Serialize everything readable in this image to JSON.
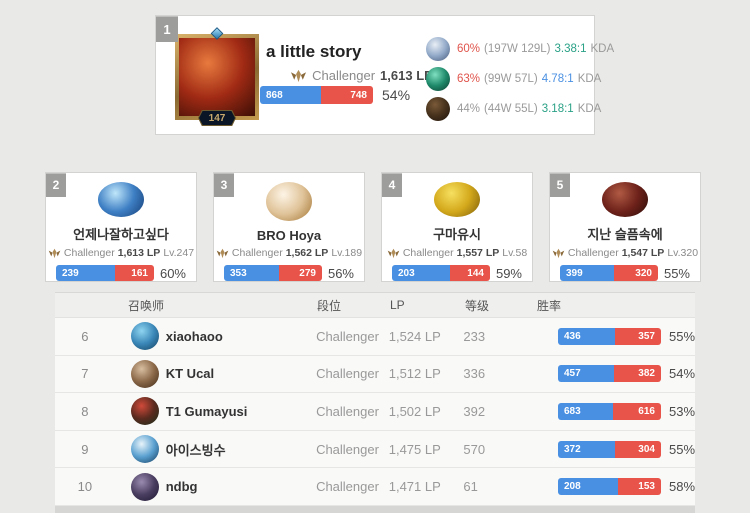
{
  "colors": {
    "win_blue": "#4a90e2",
    "loss_red": "#e85449",
    "crest_gold": "#b08d57"
  },
  "top_player": {
    "rank": "1",
    "level": "147",
    "name": "a little story",
    "tier": "Challenger",
    "lp": "1,613 LP",
    "wins": "868",
    "losses": "748",
    "win_pct": "54%",
    "win_ratio": 54,
    "avatar_colors": [
      "#e87a3e",
      "#a02a14",
      "#3c0e06"
    ],
    "champions": [
      {
        "icon": "champion-icon",
        "win_pct": "60%",
        "pct_color": "#e0544c",
        "record": "(197W 129L)",
        "kda": "3.38:1",
        "kda_color": "#2aa186",
        "kda_label": "KDA",
        "icon_colors": [
          "#e8eef5",
          "#93aac9",
          "#46597a"
        ]
      },
      {
        "icon": "champion-icon",
        "win_pct": "63%",
        "pct_color": "#e0544c",
        "record": "(99W 57L)",
        "kda": "4.78:1",
        "kda_color": "#4a90e2",
        "kda_label": "KDA",
        "icon_colors": [
          "#7fe0c0",
          "#1f8a6a",
          "#0b3a2e"
        ]
      },
      {
        "icon": "champion-icon",
        "win_pct": "44%",
        "pct_color": "#9a9a9a",
        "record": "(44W 55L)",
        "kda": "3.18:1",
        "kda_color": "#2aa186",
        "kda_label": "KDA",
        "icon_colors": [
          "#7a5a38",
          "#46311c",
          "#1d130a"
        ]
      }
    ]
  },
  "rank_cards": [
    {
      "rank": "2",
      "name": "언제나잘하고싶다",
      "tier": "Challenger",
      "lp": "1,613 LP",
      "level": "Lv.247",
      "wins": "239",
      "losses": "161",
      "win_pct": "60%",
      "win_ratio": 60,
      "avatar_colors": [
        "#bfe6fa",
        "#3e7fc4",
        "#143d74"
      ]
    },
    {
      "rank": "3",
      "name": "BRO Hoya",
      "tier": "Challenger",
      "lp": "1,562 LP",
      "level": "Lv.189",
      "wins": "353",
      "losses": "279",
      "win_pct": "56%",
      "win_ratio": 56,
      "avatar_colors": [
        "#fdf4e6",
        "#e0c49a",
        "#a1722f"
      ]
    },
    {
      "rank": "4",
      "name": "구마유시",
      "tier": "Challenger",
      "lp": "1,557 LP",
      "level": "Lv.58",
      "wins": "203",
      "losses": "144",
      "win_pct": "59%",
      "win_ratio": 59,
      "avatar_colors": [
        "#f6e060",
        "#d4a91c",
        "#7a5c0a"
      ]
    },
    {
      "rank": "5",
      "name": "지난 슬픔속에",
      "tier": "Challenger",
      "lp": "1,547 LP",
      "level": "Lv.320",
      "wins": "399",
      "losses": "320",
      "win_pct": "55%",
      "win_ratio": 55,
      "avatar_colors": [
        "#b05a44",
        "#6e221a",
        "#2a0c08"
      ]
    }
  ],
  "table": {
    "headers": {
      "summoner": "召唤师",
      "tier": "段位",
      "lp": "LP",
      "level": "等级",
      "winrate": "胜率"
    },
    "rows": [
      {
        "rank": "6",
        "name": "xiaohaoo",
        "tier": "Challenger",
        "lp": "1,524 LP",
        "level": "233",
        "wins": "436",
        "losses": "357",
        "win_pct": "55%",
        "win_ratio": 55,
        "avatar_colors": [
          "#8fd4f0",
          "#3a87b8",
          "#14405e"
        ]
      },
      {
        "rank": "7",
        "name": "KT Ucal",
        "tier": "Challenger",
        "lp": "1,512 LP",
        "level": "336",
        "wins": "457",
        "losses": "382",
        "win_pct": "54%",
        "win_ratio": 54,
        "avatar_colors": [
          "#d8bfa0",
          "#8a6848",
          "#402a18"
        ]
      },
      {
        "rank": "8",
        "name": "T1 Gumayusi",
        "tier": "Challenger",
        "lp": "1,502 LP",
        "level": "392",
        "wins": "683",
        "losses": "616",
        "win_pct": "53%",
        "win_ratio": 53,
        "avatar_colors": [
          "#d04a3a",
          "#5a2a1e",
          "#16301a"
        ]
      },
      {
        "rank": "9",
        "name": "아이스빙수",
        "tier": "Challenger",
        "lp": "1,475 LP",
        "level": "570",
        "wins": "372",
        "losses": "304",
        "win_pct": "55%",
        "win_ratio": 55,
        "avatar_colors": [
          "#e8f4fa",
          "#5aa0d0",
          "#123a5c"
        ]
      },
      {
        "rank": "10",
        "name": "ndbg",
        "tier": "Challenger",
        "lp": "1,471 LP",
        "level": "61",
        "wins": "208",
        "losses": "153",
        "win_pct": "58%",
        "win_ratio": 58,
        "avatar_colors": [
          "#9a8ab0",
          "#4a3e60",
          "#1c1630"
        ]
      }
    ]
  }
}
